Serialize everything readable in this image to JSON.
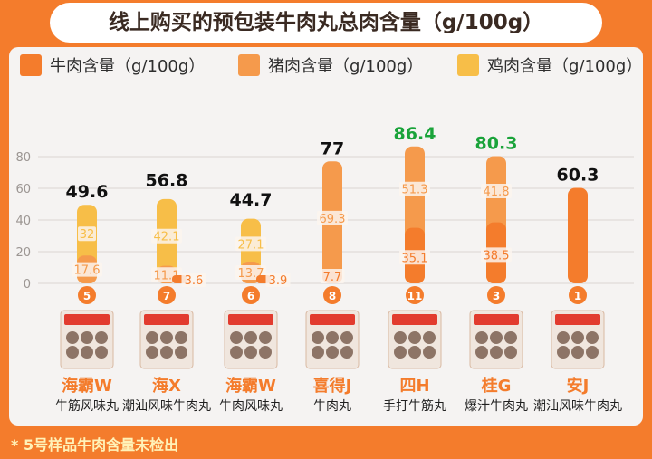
{
  "title": "线上购买的预包装牛肉丸总肉含量（g/100g）",
  "footnote": "* 5号样品牛肉含量未检出",
  "colors": {
    "beef": "#f47c2c",
    "pork": "#f59a4c",
    "chicken": "#f7be48",
    "bg": "#f3f1f0",
    "accent": "#f47c2c",
    "highlight": "#1aa33a"
  },
  "legend": [
    {
      "label": "牛肉含量（g/100g）",
      "color": "#f47c2c"
    },
    {
      "label": "猪肉含量（g/100g）",
      "color": "#f59a4c"
    },
    {
      "label": "鸡肉含量（g/100g）",
      "color": "#f7be48"
    }
  ],
  "chart_data": {
    "type": "bar",
    "stacked": true,
    "title": "线上购买的预包装牛肉丸总肉含量（g/100g）",
    "ylim": [
      0,
      90
    ],
    "yticks": [
      0,
      20,
      40,
      60,
      80
    ],
    "grid": true,
    "legend_position": "top",
    "products": [
      {
        "badge": "5",
        "brand": "海霸W",
        "name": "牛筋风味丸",
        "total": "49.6",
        "total_highlight": false,
        "segments": [
          {
            "series": "chicken",
            "value": 32,
            "label": "32"
          },
          {
            "series": "chicken",
            "value": 17.6,
            "label": "17.6"
          }
        ]
      },
      {
        "badge": "7",
        "brand": "海X",
        "name": "潮汕风味牛肉丸",
        "total": "56.8",
        "total_highlight": false,
        "segments": [
          {
            "series": "chicken",
            "value": 42.1,
            "label": "42.1"
          },
          {
            "series": "chicken",
            "value": 11.1,
            "label": "11.1"
          },
          {
            "series": "beef",
            "value": 3.6,
            "label": "3.6"
          }
        ]
      },
      {
        "badge": "6",
        "brand": "海霸W",
        "name": "牛肉风味丸",
        "total": "44.7",
        "total_highlight": false,
        "segments": [
          {
            "series": "chicken",
            "value": 27.1,
            "label": "27.1"
          },
          {
            "series": "chicken",
            "value": 13.7,
            "label": "13.7"
          },
          {
            "series": "beef",
            "value": 3.9,
            "label": "3.9"
          }
        ]
      },
      {
        "badge": "8",
        "brand": "喜得J",
        "name": "牛肉丸",
        "total": "77",
        "total_highlight": false,
        "segments": [
          {
            "series": "pork",
            "value": 69.3,
            "label": "69.3"
          },
          {
            "series": "beef",
            "value": 7.7,
            "label": "7.7"
          }
        ]
      },
      {
        "badge": "11",
        "brand": "四H",
        "name": "手打牛筋丸",
        "total": "86.4",
        "total_highlight": true,
        "segments": [
          {
            "series": "pork",
            "value": 51.3,
            "label": "51.3"
          },
          {
            "series": "beef",
            "value": 35.1,
            "label": "35.1"
          }
        ]
      },
      {
        "badge": "3",
        "brand": "桂G",
        "name": "爆汁牛肉丸",
        "total": "80.3",
        "total_highlight": true,
        "segments": [
          {
            "series": "pork",
            "value": 41.8,
            "label": "41.8"
          },
          {
            "series": "beef",
            "value": 38.5,
            "label": "38.5"
          }
        ]
      },
      {
        "badge": "1",
        "brand": "安J",
        "name": "潮汕风味牛肉丸",
        "total": "60.3",
        "total_highlight": false,
        "segments": [
          {
            "series": "beef",
            "value": 60.3,
            "label": ""
          }
        ]
      }
    ],
    "package_texts": [
      "潮汕牛肉丸",
      "牛肉风味丸",
      "手打牛筋丸",
      "爆汁",
      "牛肉丸"
    ]
  }
}
